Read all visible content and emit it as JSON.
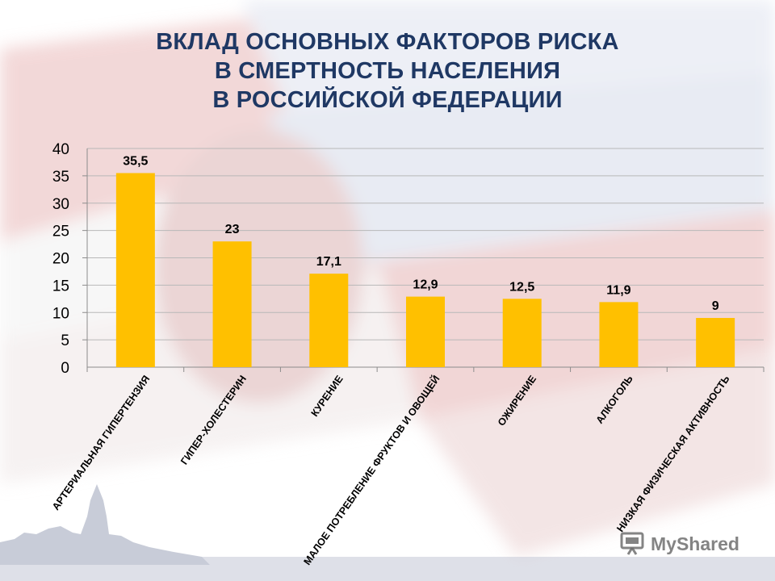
{
  "title_lines": [
    "ВКЛАД ОСНОВНЫХ ФАКТОРОВ РИСКА",
    "В СМЕРТНОСТЬ НАСЕЛЕНИЯ",
    "В РОССИЙСКОЙ ФЕДЕРАЦИИ"
  ],
  "watermark": {
    "text": "MyShared",
    "icon": "presentation-icon"
  },
  "colors": {
    "bar": "#ffc000",
    "title": "#1f3864",
    "grid": "#b8b8b8",
    "text": "#000000"
  },
  "chart_data": {
    "type": "bar",
    "title": "ВКЛАД ОСНОВНЫХ ФАКТОРОВ РИСКА В СМЕРТНОСТЬ НАСЕЛЕНИЯ В РОССИЙСКОЙ ФЕДЕРАЦИИ",
    "categories": [
      "АРТЕРИАЛЬНАЯ ГИПЕРТЕНЗИЯ",
      "ГИПЕР-ХОЛЕСТЕРИН",
      "КУРЕНИЕ",
      "МАЛОЕ ПОТРЕБЛЕНИЕ ФРУКТОВ И ОВОЩЕЙ",
      "ОЖИРЕНИЕ",
      "АЛКОГОЛЬ",
      "НИЗКАЯ ФИЗИЧЕСКАЯ АКТИВНОСТЬ"
    ],
    "values": [
      35.5,
      23,
      17.1,
      12.9,
      12.5,
      11.9,
      9
    ],
    "value_labels": [
      "35,5",
      "23",
      "17,1",
      "12,9",
      "12,5",
      "11,9",
      "9"
    ],
    "yticks": [
      0,
      5,
      10,
      15,
      20,
      25,
      30,
      35,
      40
    ],
    "ylim": [
      0,
      40
    ],
    "grid": true,
    "legend": "none",
    "xlabel": "",
    "ylabel": ""
  }
}
